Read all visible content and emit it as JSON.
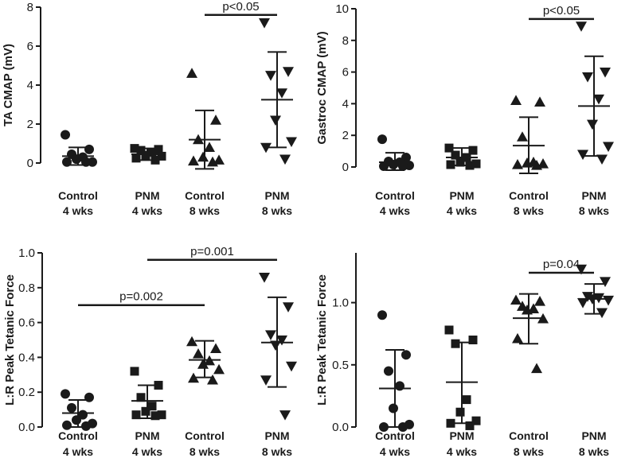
{
  "chart_data": [
    {
      "type": "scatter",
      "panel": "top-left",
      "ylabel": "TA CMAP (mV)",
      "ylim": [
        0,
        8
      ],
      "yticks": [
        0,
        2,
        4,
        6,
        8
      ],
      "yticklabels": [
        "0",
        "2",
        "4",
        "6",
        "8"
      ],
      "categories": [
        {
          "line1": "Control",
          "line2": "4 wks",
          "marker": "circle",
          "values": [
            1.45,
            0.7,
            0.45,
            0.3,
            0.2,
            0.05,
            0.05,
            0.05
          ],
          "mean": 0.35,
          "sd_low": -0.1,
          "sd_high": 0.8
        },
        {
          "line1": "PNM",
          "line2": "4 wks",
          "marker": "square",
          "values": [
            0.75,
            0.7,
            0.65,
            0.55,
            0.4,
            0.35,
            0.25,
            0.15
          ],
          "mean": 0.45,
          "sd_low": 0.15,
          "sd_high": 0.75
        },
        {
          "line1": "Control",
          "line2": "8 wks",
          "marker": "triangle-up",
          "values": [
            4.6,
            2.2,
            1.2,
            0.8,
            0.3,
            0.15,
            0.1,
            0.05
          ],
          "mean": 1.2,
          "sd_low": -0.3,
          "sd_high": 2.7
        },
        {
          "line1": "PNM",
          "line2": "8 wks",
          "marker": "triangle-down",
          "values": [
            7.2,
            4.7,
            4.5,
            3.6,
            2.2,
            1.1,
            0.8,
            0.2
          ],
          "mean": 3.25,
          "sd_low": 0.8,
          "sd_high": 5.7
        }
      ],
      "significance": [
        {
          "label": "p<0.05",
          "from": 2,
          "to": 3,
          "y": 7.6
        }
      ]
    },
    {
      "type": "scatter",
      "panel": "top-right",
      "ylabel": "Gastroc CMAP (mV)",
      "ylim": [
        0,
        10
      ],
      "yticks": [
        0,
        2,
        4,
        6,
        8,
        10
      ],
      "yticklabels": [
        "0",
        "2",
        "4",
        "6",
        "8",
        "10"
      ],
      "categories": [
        {
          "line1": "Control",
          "line2": "4 wks",
          "marker": "circle",
          "values": [
            1.75,
            0.6,
            0.35,
            0.3,
            0.15,
            0.1,
            0.05,
            0.05
          ],
          "mean": 0.3,
          "sd_low": -0.2,
          "sd_high": 0.9
        },
        {
          "line1": "PNM",
          "line2": "4 wks",
          "marker": "square",
          "values": [
            1.2,
            1.05,
            0.75,
            0.6,
            0.3,
            0.2,
            0.15,
            0.1
          ],
          "mean": 0.6,
          "sd_low": 0.1,
          "sd_high": 1.2
        },
        {
          "line1": "Control",
          "line2": "8 wks",
          "marker": "triangle-up",
          "values": [
            4.2,
            4.1,
            1.9,
            0.3,
            0.25,
            0.2,
            0.15,
            0.1
          ],
          "mean": 1.35,
          "sd_low": -0.4,
          "sd_high": 3.15
        },
        {
          "line1": "PNM",
          "line2": "8 wks",
          "marker": "triangle-down",
          "values": [
            8.9,
            6.0,
            5.7,
            4.3,
            2.7,
            1.3,
            0.8,
            0.5
          ],
          "mean": 3.85,
          "sd_low": 0.7,
          "sd_high": 7.0
        }
      ],
      "significance": [
        {
          "label": "p<0.05",
          "from": 2,
          "to": 3,
          "y": 9.35
        }
      ]
    },
    {
      "type": "scatter",
      "panel": "bottom-left",
      "ylabel": "L:R Peak Tetanic Force",
      "ylim": [
        0,
        1.0
      ],
      "yticks": [
        0,
        0.2,
        0.4,
        0.6,
        0.8,
        1.0
      ],
      "yticklabels": [
        "0.0",
        "0.2",
        "0.4",
        "0.6",
        "0.8",
        "1.0"
      ],
      "categories": [
        {
          "line1": "Control",
          "line2": "4 wks",
          "marker": "circle",
          "values": [
            0.19,
            0.17,
            0.11,
            0.07,
            0.04,
            0.02,
            0.01,
            0.005
          ],
          "mean": 0.08,
          "sd_low": 0.0,
          "sd_high": 0.155
        },
        {
          "line1": "PNM",
          "line2": "4 wks",
          "marker": "square",
          "values": [
            0.32,
            0.24,
            0.17,
            0.12,
            0.09,
            0.07,
            0.07,
            0.065
          ],
          "mean": 0.15,
          "sd_low": 0.05,
          "sd_high": 0.24
        },
        {
          "line1": "Control",
          "line2": "8 wks",
          "marker": "triangle-up",
          "values": [
            0.49,
            0.45,
            0.42,
            0.38,
            0.36,
            0.33,
            0.28,
            0.27
          ],
          "mean": 0.385,
          "sd_low": 0.285,
          "sd_high": 0.495
        },
        {
          "line1": "PNM",
          "line2": "8 wks",
          "marker": "triangle-down",
          "values": [
            0.86,
            0.69,
            0.53,
            0.5,
            0.47,
            0.35,
            0.27,
            0.07
          ],
          "mean": 0.485,
          "sd_low": 0.23,
          "sd_high": 0.745
        }
      ],
      "significance": [
        {
          "label": "p=0.002",
          "from": 0,
          "to": 2,
          "y": 0.7
        },
        {
          "label": "p=0.001",
          "from": 1,
          "to": 3,
          "y": 0.96
        }
      ]
    },
    {
      "type": "scatter",
      "panel": "bottom-right",
      "ylabel": "L:R Peak Tetanic Force",
      "ylim": [
        0,
        1.4
      ],
      "yticks": [
        0,
        0.5,
        1.0
      ],
      "yticklabels": [
        "0.0",
        "0.5",
        "1.0"
      ],
      "categories": [
        {
          "line1": "Control",
          "line2": "4 wks",
          "marker": "circle",
          "values": [
            0.9,
            0.58,
            0.45,
            0.33,
            0.15,
            0.02,
            0.0,
            0.0
          ],
          "mean": 0.31,
          "sd_low": 0.0,
          "sd_high": 0.62
        },
        {
          "line1": "PNM",
          "line2": "4 wks",
          "marker": "square",
          "values": [
            0.78,
            0.7,
            0.67,
            0.22,
            0.12,
            0.05,
            0.03,
            0.01
          ],
          "mean": 0.36,
          "sd_low": 0.03,
          "sd_high": 0.68
        },
        {
          "line1": "Control",
          "line2": "8 wks",
          "marker": "triangle-up",
          "values": [
            1.02,
            1.01,
            0.97,
            0.95,
            0.94,
            0.87,
            0.71,
            0.47
          ],
          "mean": 0.875,
          "sd_low": 0.67,
          "sd_high": 1.07
        },
        {
          "line1": "PNM",
          "line2": "8 wks",
          "marker": "triangle-down",
          "values": [
            1.27,
            1.17,
            1.05,
            1.04,
            1.03,
            1.02,
            1.0,
            0.92
          ],
          "mean": 1.03,
          "sd_low": 0.91,
          "sd_high": 1.15
        }
      ],
      "significance": [
        {
          "label": "p=0.04",
          "from": 2,
          "to": 3,
          "y": 1.24
        }
      ]
    }
  ],
  "colors": {
    "ink": "#1a1a1a",
    "background": "#ffffff"
  }
}
